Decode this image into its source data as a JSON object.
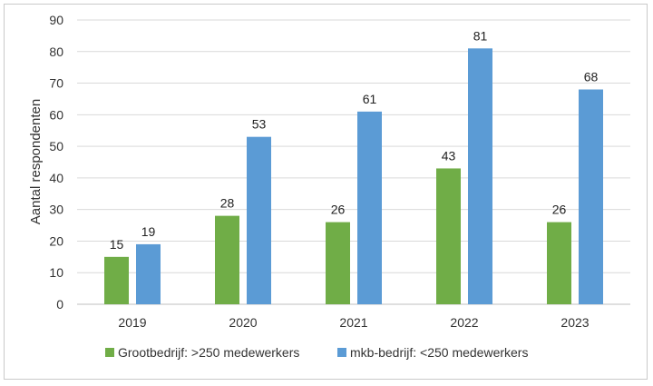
{
  "chart_data": {
    "type": "bar",
    "title": "",
    "xlabel": "",
    "ylabel": "Aantal respondenten",
    "ylim": [
      0,
      90
    ],
    "yticks": [
      0,
      10,
      20,
      30,
      40,
      50,
      60,
      70,
      80,
      90
    ],
    "grid": true,
    "legend_position": "bottom",
    "categories": [
      "2019",
      "2020",
      "2021",
      "2022",
      "2023"
    ],
    "series": [
      {
        "name": "Grootbedrijf: >250 medewerkers",
        "color": "#70ad47",
        "values": [
          15,
          28,
          26,
          43,
          26
        ]
      },
      {
        "name": "mkb-bedrijf: <250 medewerkers",
        "color": "#5b9bd5",
        "values": [
          19,
          53,
          61,
          81,
          68
        ]
      }
    ]
  }
}
